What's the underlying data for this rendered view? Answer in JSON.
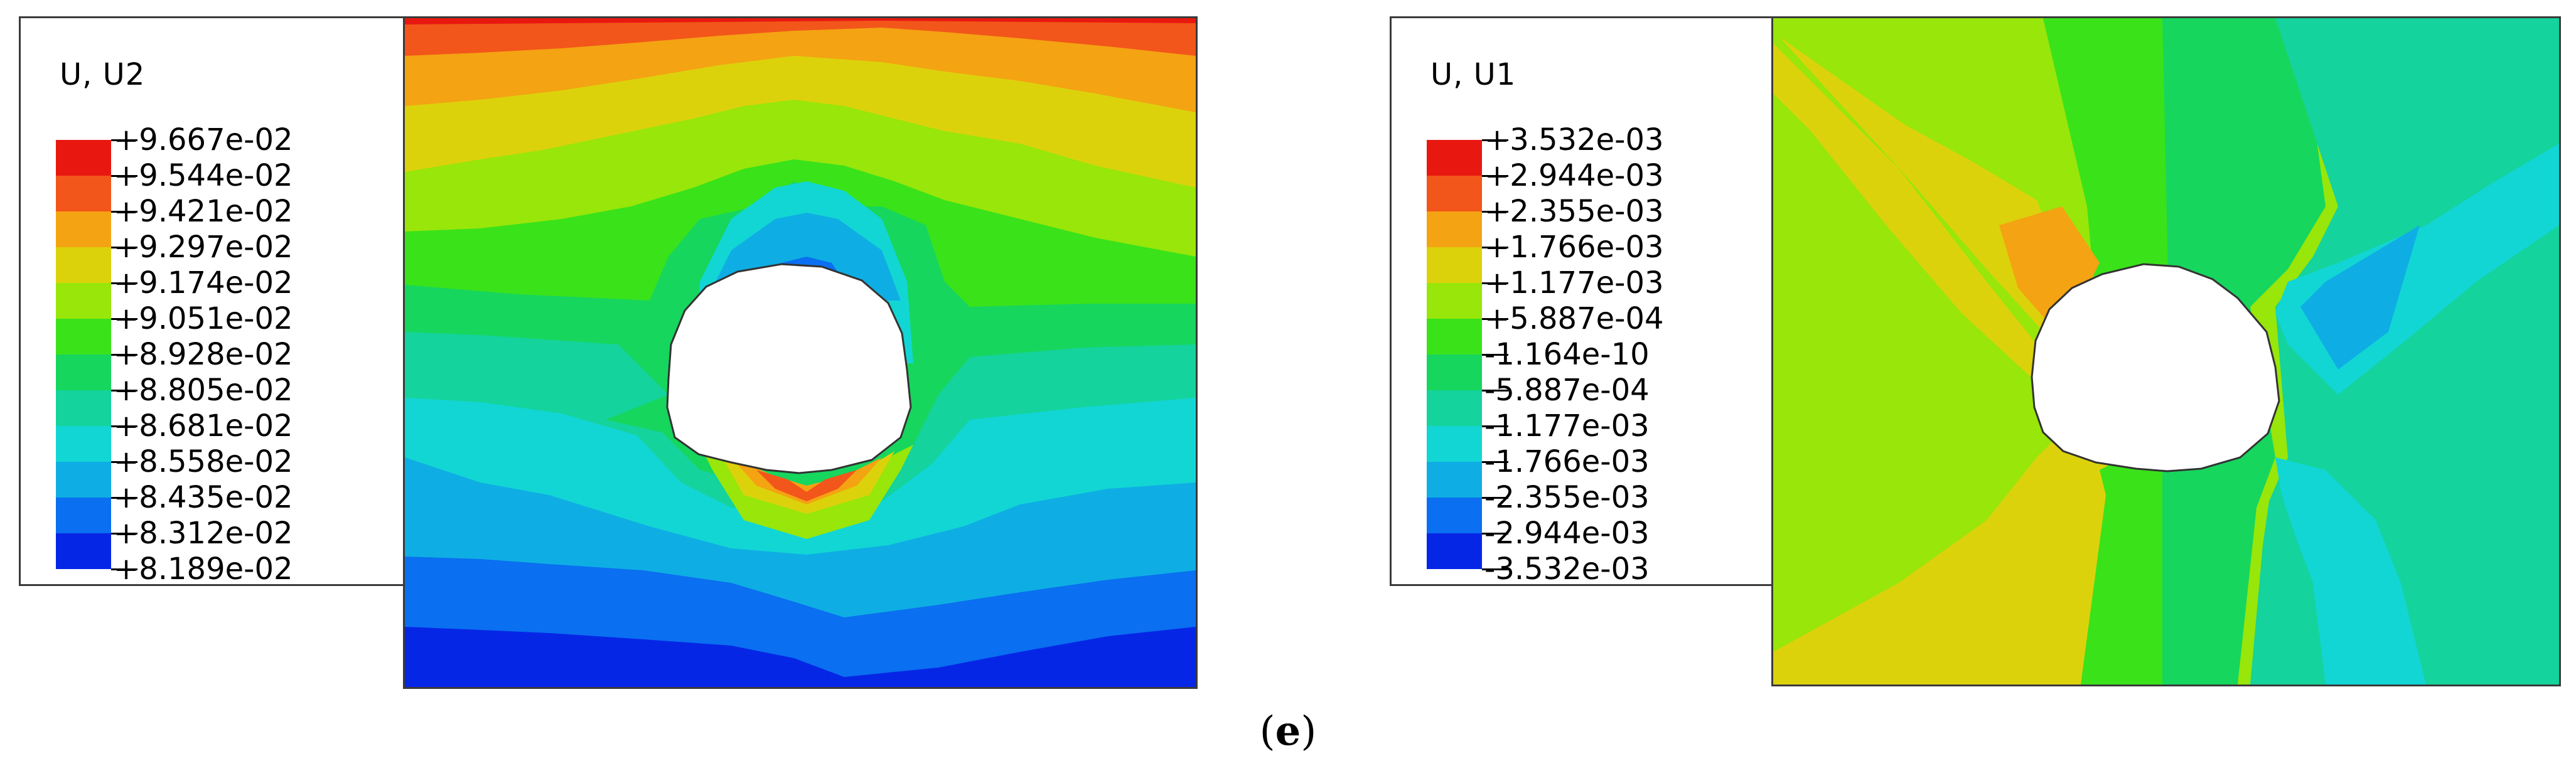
{
  "panels": [
    {
      "legend": {
        "title": "U, U2",
        "labels": [
          "+9.667e-02",
          "+9.544e-02",
          "+9.421e-02",
          "+9.297e-02",
          "+9.174e-02",
          "+9.051e-02",
          "+8.928e-02",
          "+8.805e-02",
          "+8.681e-02",
          "+8.558e-02",
          "+8.435e-02",
          "+8.312e-02",
          "+8.189e-02"
        ]
      }
    },
    {
      "legend": {
        "title": "U, U1",
        "labels": [
          "+3.532e-03",
          "+2.944e-03",
          "+2.355e-03",
          "+1.766e-03",
          "+1.177e-03",
          "+5.887e-04",
          "-1.164e-10",
          "-5.887e-04",
          "-1.177e-03",
          "-1.766e-03",
          "-2.355e-03",
          "-2.944e-03",
          "-3.532e-03"
        ]
      }
    }
  ],
  "colormap": [
    "#e81810",
    "#f2561a",
    "#f4a312",
    "#dcd20c",
    "#98e60a",
    "#3ae21a",
    "#16d65e",
    "#14d39c",
    "#12d6d4",
    "#0eaee4",
    "#0a6ff0",
    "#0626e6"
  ],
  "caption": {
    "open": "(",
    "letter": "e",
    "close": ")"
  }
}
